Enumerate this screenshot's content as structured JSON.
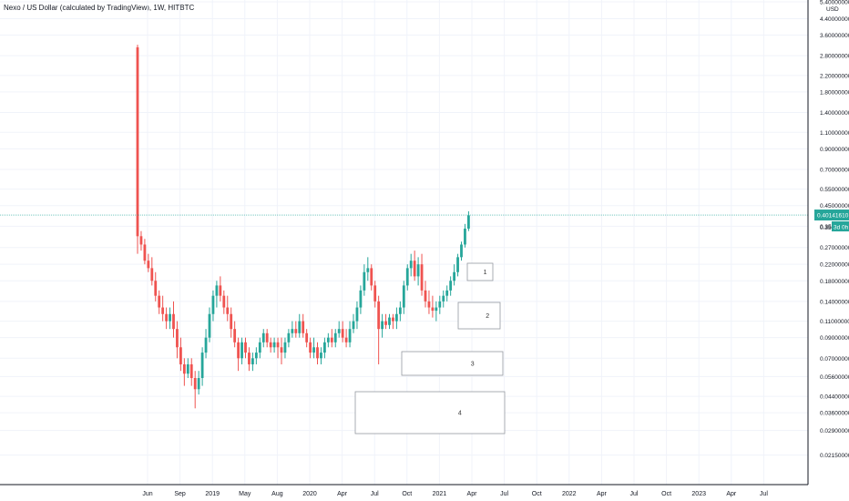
{
  "title": "Nexo / US Dollar (calculated by TradingView), 1W, HITBTC",
  "currency_label": "USD",
  "price_badge": {
    "value": "0.40141610",
    "countdown": "3d 0h",
    "countdown_prefix": "0.350"
  },
  "colors": {
    "up": "#26a69a",
    "down": "#ef5350",
    "grid": "#f0f3fa",
    "axis": "#131722",
    "price_line": "#26a69a"
  },
  "chart_data": {
    "type": "candlestick",
    "title": "Nexo / US Dollar (calculated by TradingView), 1W, HITBTC",
    "y_scale": "log",
    "ylim": [
      0.015,
      5.4
    ],
    "y_ticks": [
      "5.400000000",
      "4.400000000",
      "3.600000000",
      "2.800000000",
      "2.200000000",
      "1.800000000",
      "1.400000000",
      "1.100000000",
      "0.900000000",
      "0.700000000",
      "0.550000000",
      "0.450000000",
      "0.350000000",
      "0.270000000",
      "0.220000000",
      "0.180000000",
      "0.140000000",
      "0.110000000",
      "0.090000000",
      "0.070000000",
      "0.056000000",
      "0.044000000",
      "0.036000000",
      "0.029000000",
      "0.021500000"
    ],
    "x_ticks": [
      "Jun",
      "Sep",
      "2019",
      "May",
      "Aug",
      "2020",
      "Apr",
      "Jul",
      "Oct",
      "2021",
      "Apr",
      "Jul",
      "Oct",
      "2022",
      "Apr",
      "Jul",
      "Oct",
      "2023",
      "Apr",
      "Jul"
    ],
    "last_price": 0.4014161,
    "candles": [
      [
        3.1,
        3.2,
        0.25,
        0.31
      ],
      [
        0.31,
        0.33,
        0.26,
        0.28
      ],
      [
        0.28,
        0.3,
        0.22,
        0.23
      ],
      [
        0.23,
        0.25,
        0.2,
        0.21
      ],
      [
        0.21,
        0.24,
        0.17,
        0.18
      ],
      [
        0.18,
        0.2,
        0.14,
        0.15
      ],
      [
        0.15,
        0.16,
        0.12,
        0.13
      ],
      [
        0.13,
        0.15,
        0.11,
        0.12
      ],
      [
        0.12,
        0.13,
        0.1,
        0.11
      ],
      [
        0.11,
        0.13,
        0.1,
        0.12
      ],
      [
        0.12,
        0.14,
        0.09,
        0.1
      ],
      [
        0.1,
        0.11,
        0.07,
        0.08
      ],
      [
        0.08,
        0.09,
        0.06,
        0.065
      ],
      [
        0.065,
        0.07,
        0.05,
        0.058
      ],
      [
        0.058,
        0.07,
        0.055,
        0.065
      ],
      [
        0.065,
        0.07,
        0.05,
        0.055
      ],
      [
        0.055,
        0.06,
        0.038,
        0.048
      ],
      [
        0.048,
        0.06,
        0.045,
        0.055
      ],
      [
        0.055,
        0.08,
        0.05,
        0.075
      ],
      [
        0.075,
        0.1,
        0.07,
        0.09
      ],
      [
        0.09,
        0.13,
        0.085,
        0.12
      ],
      [
        0.12,
        0.16,
        0.11,
        0.15
      ],
      [
        0.15,
        0.18,
        0.13,
        0.17
      ],
      [
        0.17,
        0.19,
        0.14,
        0.15
      ],
      [
        0.15,
        0.16,
        0.12,
        0.13
      ],
      [
        0.13,
        0.15,
        0.11,
        0.12
      ],
      [
        0.12,
        0.13,
        0.09,
        0.1
      ],
      [
        0.1,
        0.11,
        0.08,
        0.085
      ],
      [
        0.085,
        0.09,
        0.06,
        0.07
      ],
      [
        0.07,
        0.09,
        0.065,
        0.085
      ],
      [
        0.085,
        0.09,
        0.07,
        0.075
      ],
      [
        0.075,
        0.08,
        0.06,
        0.065
      ],
      [
        0.065,
        0.075,
        0.06,
        0.07
      ],
      [
        0.07,
        0.08,
        0.065,
        0.075
      ],
      [
        0.075,
        0.09,
        0.07,
        0.085
      ],
      [
        0.085,
        0.1,
        0.08,
        0.095
      ],
      [
        0.095,
        0.1,
        0.08,
        0.085
      ],
      [
        0.085,
        0.09,
        0.075,
        0.08
      ],
      [
        0.08,
        0.09,
        0.075,
        0.085
      ],
      [
        0.085,
        0.09,
        0.07,
        0.08
      ],
      [
        0.08,
        0.09,
        0.065,
        0.075
      ],
      [
        0.075,
        0.09,
        0.07,
        0.085
      ],
      [
        0.085,
        0.1,
        0.08,
        0.095
      ],
      [
        0.095,
        0.11,
        0.09,
        0.1
      ],
      [
        0.1,
        0.11,
        0.09,
        0.095
      ],
      [
        0.095,
        0.12,
        0.09,
        0.11
      ],
      [
        0.11,
        0.12,
        0.09,
        0.095
      ],
      [
        0.095,
        0.1,
        0.08,
        0.085
      ],
      [
        0.085,
        0.09,
        0.07,
        0.075
      ],
      [
        0.075,
        0.09,
        0.07,
        0.08
      ],
      [
        0.08,
        0.085,
        0.065,
        0.07
      ],
      [
        0.07,
        0.08,
        0.065,
        0.075
      ],
      [
        0.075,
        0.09,
        0.07,
        0.085
      ],
      [
        0.085,
        0.095,
        0.08,
        0.09
      ],
      [
        0.09,
        0.1,
        0.08,
        0.085
      ],
      [
        0.085,
        0.1,
        0.08,
        0.095
      ],
      [
        0.095,
        0.11,
        0.09,
        0.1
      ],
      [
        0.1,
        0.11,
        0.085,
        0.09
      ],
      [
        0.09,
        0.1,
        0.08,
        0.085
      ],
      [
        0.085,
        0.11,
        0.08,
        0.1
      ],
      [
        0.1,
        0.12,
        0.095,
        0.11
      ],
      [
        0.11,
        0.14,
        0.1,
        0.13
      ],
      [
        0.13,
        0.17,
        0.12,
        0.16
      ],
      [
        0.16,
        0.22,
        0.15,
        0.2
      ],
      [
        0.2,
        0.24,
        0.18,
        0.21
      ],
      [
        0.21,
        0.22,
        0.16,
        0.17
      ],
      [
        0.17,
        0.18,
        0.13,
        0.14
      ],
      [
        0.14,
        0.15,
        0.065,
        0.1
      ],
      [
        0.1,
        0.12,
        0.09,
        0.11
      ],
      [
        0.11,
        0.12,
        0.1,
        0.105
      ],
      [
        0.105,
        0.12,
        0.1,
        0.115
      ],
      [
        0.115,
        0.12,
        0.1,
        0.11
      ],
      [
        0.11,
        0.13,
        0.1,
        0.12
      ],
      [
        0.12,
        0.14,
        0.11,
        0.13
      ],
      [
        0.13,
        0.18,
        0.12,
        0.17
      ],
      [
        0.17,
        0.22,
        0.16,
        0.21
      ],
      [
        0.21,
        0.25,
        0.19,
        0.23
      ],
      [
        0.23,
        0.26,
        0.18,
        0.19
      ],
      [
        0.19,
        0.24,
        0.17,
        0.22
      ],
      [
        0.22,
        0.25,
        0.15,
        0.16
      ],
      [
        0.16,
        0.18,
        0.13,
        0.14
      ],
      [
        0.14,
        0.16,
        0.12,
        0.13
      ],
      [
        0.13,
        0.15,
        0.115,
        0.125
      ],
      [
        0.125,
        0.14,
        0.11,
        0.13
      ],
      [
        0.13,
        0.15,
        0.12,
        0.14
      ],
      [
        0.14,
        0.16,
        0.13,
        0.15
      ],
      [
        0.15,
        0.17,
        0.14,
        0.16
      ],
      [
        0.16,
        0.19,
        0.15,
        0.18
      ],
      [
        0.18,
        0.22,
        0.17,
        0.2
      ],
      [
        0.2,
        0.25,
        0.19,
        0.24
      ],
      [
        0.24,
        0.29,
        0.23,
        0.28
      ],
      [
        0.28,
        0.36,
        0.27,
        0.34
      ],
      [
        0.34,
        0.42,
        0.33,
        0.4
      ]
    ],
    "boxes": [
      "1",
      "2",
      "3",
      "4"
    ]
  }
}
